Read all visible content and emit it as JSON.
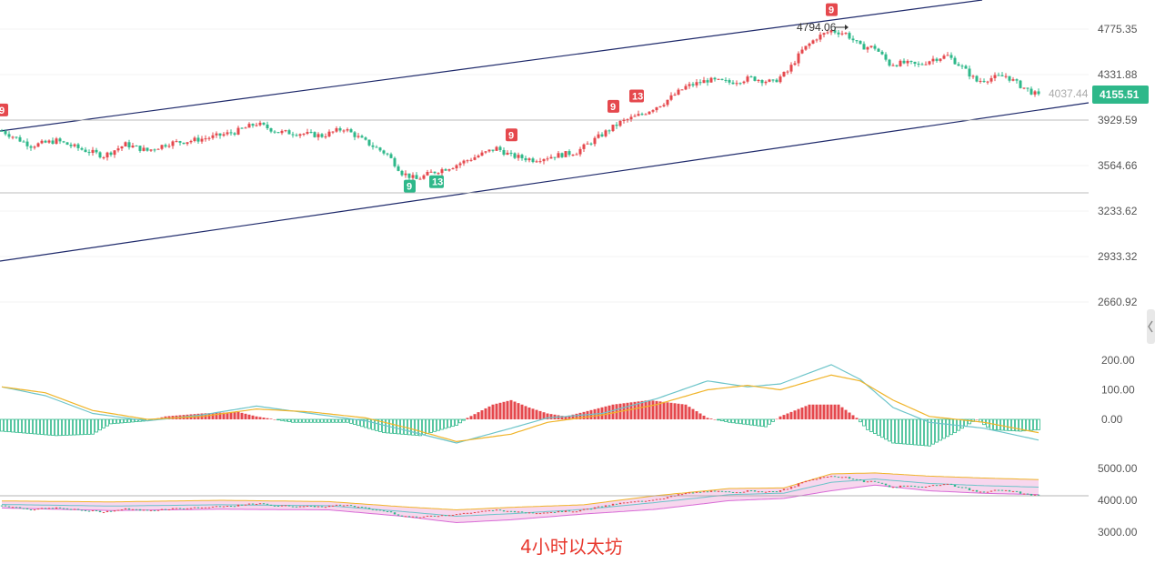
{
  "caption": "4小时以太坊",
  "colors": {
    "up": "#e5484d",
    "down": "#2eb88a",
    "channel": "#1f2a6b",
    "hline": "#bdbdbd",
    "macd_fast": "#6cc4c9",
    "macd_slow": "#f0b429",
    "band_fill": "#f7d7ee",
    "band_upper": "#f0b429",
    "band_lower": "#d86bd6",
    "band_mid": "#6cc4c9",
    "price_tag_bg": "#2eb88a"
  },
  "price_axis": {
    "ticks": [
      "4775.35",
      "4331.88",
      "3929.59",
      "3564.66",
      "3233.62",
      "2933.32",
      "2660.92"
    ]
  },
  "macd_axis": {
    "ticks": [
      "200.00",
      "100.00",
      "0.00"
    ]
  },
  "lower_axis": {
    "ticks": [
      "5000.00",
      "4000.00",
      "3000.00"
    ]
  },
  "current_price": "4155.51",
  "ghost_price": "4037.44",
  "high_annotation": "4794.06",
  "td_markers": [
    {
      "label": "9",
      "type": "sell"
    },
    {
      "label": "9",
      "type": "buy"
    },
    {
      "label": "13",
      "type": "buy"
    },
    {
      "label": "9",
      "type": "sell"
    },
    {
      "label": "9",
      "type": "sell"
    },
    {
      "label": "13",
      "type": "sell"
    },
    {
      "label": "9",
      "type": "sell"
    }
  ],
  "chart_data": {
    "type": "candlestick",
    "price_scale": "log",
    "price_axis_ticks": [
      4775.35,
      4331.88,
      3929.59,
      3564.66,
      3233.62,
      2933.32,
      2660.92
    ],
    "price_anchors": [
      [
        0,
        3840
      ],
      [
        8,
        3720
      ],
      [
        15,
        3760
      ],
      [
        22,
        3690
      ],
      [
        28,
        3640
      ],
      [
        34,
        3730
      ],
      [
        40,
        3680
      ],
      [
        46,
        3740
      ],
      [
        52,
        3760
      ],
      [
        58,
        3790
      ],
      [
        64,
        3830
      ],
      [
        70,
        3900
      ],
      [
        76,
        3830
      ],
      [
        82,
        3820
      ],
      [
        88,
        3800
      ],
      [
        94,
        3860
      ],
      [
        100,
        3750
      ],
      [
        106,
        3650
      ],
      [
        110,
        3510
      ],
      [
        114,
        3460
      ],
      [
        118,
        3510
      ],
      [
        124,
        3560
      ],
      [
        130,
        3630
      ],
      [
        136,
        3700
      ],
      [
        140,
        3640
      ],
      [
        146,
        3610
      ],
      [
        152,
        3640
      ],
      [
        158,
        3670
      ],
      [
        164,
        3790
      ],
      [
        170,
        3910
      ],
      [
        176,
        3980
      ],
      [
        182,
        4080
      ],
      [
        188,
        4220
      ],
      [
        194,
        4280
      ],
      [
        200,
        4260
      ],
      [
        206,
        4300
      ],
      [
        212,
        4260
      ],
      [
        216,
        4360
      ],
      [
        220,
        4560
      ],
      [
        224,
        4690
      ],
      [
        228,
        4760
      ],
      [
        232,
        4730
      ],
      [
        236,
        4600
      ],
      [
        240,
        4590
      ],
      [
        244,
        4430
      ],
      [
        248,
        4440
      ],
      [
        252,
        4420
      ],
      [
        256,
        4480
      ],
      [
        260,
        4510
      ],
      [
        264,
        4400
      ],
      [
        268,
        4270
      ],
      [
        272,
        4300
      ],
      [
        276,
        4320
      ],
      [
        280,
        4230
      ],
      [
        284,
        4155
      ]
    ],
    "last_close": 4155.51,
    "high": 4794.06,
    "macd": {
      "axis_ticks": [
        200,
        100,
        0
      ],
      "histogram_anchors": [
        [
          0,
          -40
        ],
        [
          15,
          -55
        ],
        [
          25,
          -50
        ],
        [
          30,
          -15
        ],
        [
          40,
          -5
        ],
        [
          45,
          10
        ],
        [
          55,
          20
        ],
        [
          65,
          25
        ],
        [
          70,
          10
        ],
        [
          80,
          -10
        ],
        [
          95,
          -10
        ],
        [
          105,
          -45
        ],
        [
          115,
          -55
        ],
        [
          125,
          -20
        ],
        [
          128,
          5
        ],
        [
          135,
          50
        ],
        [
          140,
          65
        ],
        [
          145,
          40
        ],
        [
          150,
          20
        ],
        [
          155,
          10
        ],
        [
          160,
          25
        ],
        [
          168,
          50
        ],
        [
          178,
          65
        ],
        [
          188,
          50
        ],
        [
          194,
          5
        ],
        [
          200,
          -10
        ],
        [
          210,
          -25
        ],
        [
          214,
          10
        ],
        [
          222,
          50
        ],
        [
          230,
          50
        ],
        [
          235,
          5
        ],
        [
          238,
          -35
        ],
        [
          245,
          -80
        ],
        [
          255,
          -90
        ],
        [
          262,
          -45
        ],
        [
          268,
          0
        ],
        [
          272,
          -35
        ],
        [
          280,
          -40
        ],
        [
          285,
          -35
        ]
      ],
      "fast_anchors": [
        [
          0,
          110
        ],
        [
          12,
          80
        ],
        [
          25,
          20
        ],
        [
          40,
          -5
        ],
        [
          55,
          15
        ],
        [
          70,
          45
        ],
        [
          85,
          20
        ],
        [
          100,
          -5
        ],
        [
          112,
          -40
        ],
        [
          125,
          -80
        ],
        [
          140,
          -30
        ],
        [
          150,
          5
        ],
        [
          165,
          20
        ],
        [
          180,
          70
        ],
        [
          194,
          130
        ],
        [
          205,
          110
        ],
        [
          214,
          120
        ],
        [
          228,
          185
        ],
        [
          236,
          135
        ],
        [
          245,
          40
        ],
        [
          255,
          -10
        ],
        [
          270,
          -30
        ],
        [
          285,
          -70
        ]
      ],
      "slow_anchors": [
        [
          0,
          110
        ],
        [
          12,
          90
        ],
        [
          25,
          30
        ],
        [
          40,
          0
        ],
        [
          55,
          10
        ],
        [
          70,
          35
        ],
        [
          85,
          25
        ],
        [
          100,
          5
        ],
        [
          112,
          -30
        ],
        [
          125,
          -75
        ],
        [
          140,
          -50
        ],
        [
          150,
          -10
        ],
        [
          165,
          15
        ],
        [
          180,
          50
        ],
        [
          194,
          100
        ],
        [
          205,
          115
        ],
        [
          214,
          100
        ],
        [
          228,
          150
        ],
        [
          236,
          130
        ],
        [
          245,
          65
        ],
        [
          255,
          10
        ],
        [
          270,
          -10
        ],
        [
          285,
          -45
        ]
      ]
    },
    "lower_indicator": {
      "axis_ticks": [
        5000,
        4000,
        3000
      ],
      "upper_anchors": [
        [
          0,
          3980
        ],
        [
          30,
          3950
        ],
        [
          60,
          4000
        ],
        [
          90,
          3960
        ],
        [
          110,
          3800
        ],
        [
          125,
          3700
        ],
        [
          140,
          3780
        ],
        [
          160,
          3860
        ],
        [
          180,
          4150
        ],
        [
          200,
          4370
        ],
        [
          215,
          4390
        ],
        [
          228,
          4830
        ],
        [
          240,
          4860
        ],
        [
          255,
          4760
        ],
        [
          270,
          4700
        ],
        [
          285,
          4650
        ]
      ],
      "lower_anchors": [
        [
          0,
          3760
        ],
        [
          30,
          3680
        ],
        [
          60,
          3720
        ],
        [
          90,
          3700
        ],
        [
          110,
          3500
        ],
        [
          125,
          3300
        ],
        [
          140,
          3390
        ],
        [
          160,
          3570
        ],
        [
          180,
          3720
        ],
        [
          200,
          3990
        ],
        [
          215,
          4060
        ],
        [
          228,
          4300
        ],
        [
          240,
          4480
        ],
        [
          255,
          4300
        ],
        [
          270,
          4220
        ],
        [
          285,
          4180
        ]
      ],
      "mid_anchors": [
        [
          0,
          3870
        ],
        [
          30,
          3820
        ],
        [
          60,
          3860
        ],
        [
          90,
          3830
        ],
        [
          110,
          3650
        ],
        [
          125,
          3500
        ],
        [
          140,
          3580
        ],
        [
          160,
          3715
        ],
        [
          180,
          3935
        ],
        [
          200,
          4180
        ],
        [
          215,
          4225
        ],
        [
          228,
          4565
        ],
        [
          240,
          4670
        ],
        [
          255,
          4530
        ],
        [
          270,
          4460
        ],
        [
          285,
          4415
        ]
      ]
    }
  }
}
